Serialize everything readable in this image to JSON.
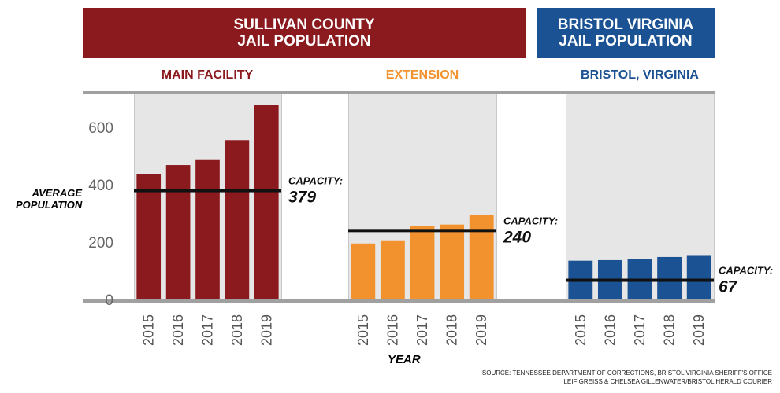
{
  "banners": {
    "sullivan": {
      "line1": "SULLIVAN COUNTY",
      "line2": "JAIL POPULATION"
    },
    "bristol": {
      "line1": "BRISTOL VIRGINIA",
      "line2": "JAIL POPULATION"
    }
  },
  "colors": {
    "sullivan_banner": "#8b1a1f",
    "bristol_banner": "#1a5294",
    "main": "#8b1a1f",
    "extension": "#f2922e",
    "bristol": "#1a5294",
    "panel_bg": "#dcdcdc",
    "capacity_line": "#111111"
  },
  "ylabel_line1": "AVERAGE",
  "ylabel_line2": "POPULATION",
  "xlabel": "YEAR",
  "source_line1": "SOURCE: TENNESSEE DEPARTMENT OF CORRECTIONS, BRISTOL VIRGINIA SHERIFF'S OFFICE",
  "source_line2": "LEIF GREISS & CHELSEA GILLENWATER/BRISTOL HERALD COURIER",
  "chart_data": {
    "type": "bar",
    "ylim": [
      0,
      720
    ],
    "yticks": [
      0,
      200,
      400,
      600
    ],
    "categories": [
      "2015",
      "2016",
      "2017",
      "2018",
      "2019"
    ],
    "panels": [
      {
        "name": "MAIN FACILITY",
        "color_key": "main",
        "values": [
          436,
          468,
          488,
          555,
          678
        ],
        "capacity_label": "CAPACITY:",
        "capacity": 379,
        "capacity_text": "379"
      },
      {
        "name": "EXTENSION",
        "color_key": "extension",
        "values": [
          195,
          206,
          256,
          261,
          295
        ],
        "capacity_label": "CAPACITY:",
        "capacity": 240,
        "capacity_text": "240"
      },
      {
        "name": "BRISTOL, VIRGINIA",
        "color_key": "bristol",
        "values": [
          135,
          137,
          141,
          148,
          152
        ],
        "capacity_label": "CAPACITY:",
        "capacity": 67,
        "capacity_text": "67"
      }
    ]
  }
}
